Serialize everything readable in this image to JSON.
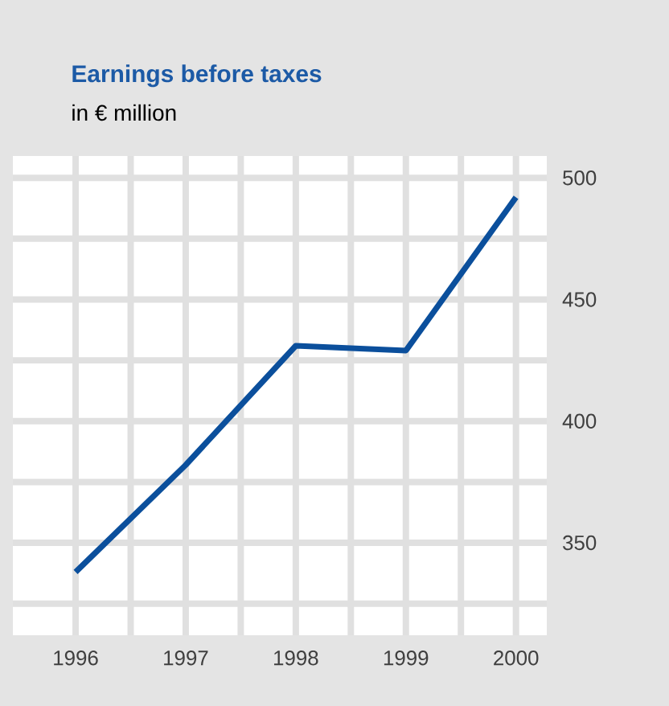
{
  "chart_data": {
    "type": "line",
    "title": "Earnings before taxes",
    "subtitle": "in € million",
    "x": [
      1996,
      1997,
      1998,
      1999,
      2000
    ],
    "series": [
      {
        "color": "#0b4f9c",
        "values": [
          338,
          382,
          431,
          429,
          492
        ]
      }
    ],
    "xlim": [
      1995.43,
      2000.28
    ],
    "xticks": [
      1996,
      {
        "value": 1996.5,
        "label": null
      },
      1997,
      {
        "value": 1997.5,
        "label": null
      },
      1998,
      {
        "value": 1998.5,
        "label": null
      },
      1999,
      {
        "value": 1999.5,
        "label": null
      },
      2000
    ],
    "ylim": [
      312,
      509
    ],
    "yticks": [
      {
        "value": 325,
        "label": null
      },
      350,
      {
        "value": 375,
        "label": null
      },
      400,
      {
        "value": 425,
        "label": null
      },
      450,
      {
        "value": 475,
        "label": null
      },
      500
    ],
    "grid": true,
    "marker": "none",
    "line_style": "solid"
  }
}
